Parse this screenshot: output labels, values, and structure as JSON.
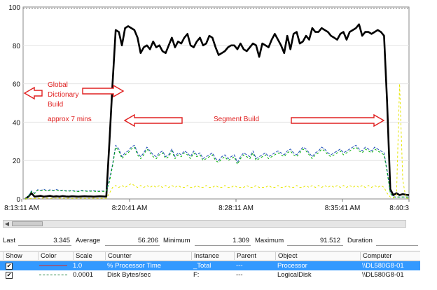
{
  "chart_data": {
    "type": "line",
    "y_ticks": [
      "0",
      "20",
      "40",
      "60",
      "80",
      "100"
    ],
    "ylim": [
      0,
      100
    ],
    "x_ticks": [
      "8:13:11 AM",
      "8:20:41 AM",
      "8:28:11 AM",
      "8:35:41 AM",
      "8:40:3"
    ],
    "series": [
      {
        "color": "#000000",
        "values": [
          0,
          1.2,
          3.0,
          1.2,
          1.4,
          1.6,
          1.2,
          1.4,
          1.6,
          1.2,
          1.4,
          1.2,
          1.5,
          1.3,
          1.2,
          1.4,
          1.3,
          1.2,
          1.3,
          1.4,
          1.3,
          1.3,
          1.2,
          1.3,
          1.4,
          1.3,
          1.2,
          30,
          60,
          88,
          87,
          80,
          89,
          90,
          89,
          88,
          84,
          76,
          79,
          80,
          78,
          82,
          79,
          80,
          77,
          76,
          80,
          84,
          79,
          82,
          81,
          84,
          86,
          80,
          79,
          82,
          84,
          80,
          81,
          85,
          84,
          79,
          75,
          76,
          77,
          79,
          80,
          80,
          78,
          81,
          78,
          77,
          79,
          81,
          80,
          74,
          81,
          80,
          79,
          83,
          86,
          83,
          80,
          76,
          85,
          78,
          86,
          87,
          81,
          82,
          85,
          83,
          89,
          87,
          87,
          89,
          88,
          87,
          85,
          84,
          83,
          86,
          87,
          83,
          87,
          88,
          89,
          91,
          85,
          87,
          87,
          86,
          87,
          88,
          87,
          85,
          50,
          5,
          2,
          3,
          2,
          2.5,
          2.2,
          2.0
        ]
      },
      {
        "color": "#1f4fb8",
        "values": [
          0,
          1.5,
          4.2,
          3.0,
          4.8,
          4.5,
          5.0,
          4.3,
          4.8,
          4.5,
          4.9,
          4.4,
          4.6,
          4.3,
          4.2,
          4.5,
          4.1,
          4.0,
          4.4,
          4.3,
          4.1,
          4.2,
          4.3,
          4.0,
          4.1,
          4.1,
          4.1,
          10,
          18,
          28,
          26,
          22,
          24,
          25,
          27,
          28,
          24,
          22,
          24,
          27,
          25,
          23,
          22,
          24,
          25,
          22,
          23,
          26,
          22,
          24,
          23,
          25,
          24,
          22,
          25,
          23,
          24,
          21,
          22,
          23,
          24,
          21,
          20,
          22,
          23,
          21,
          22,
          23,
          19,
          22,
          24,
          23,
          22,
          25,
          21,
          22,
          23,
          24,
          22,
          23,
          24,
          25,
          24,
          23,
          25,
          26,
          24,
          23,
          25,
          27,
          26,
          24,
          22,
          24,
          25,
          27,
          26,
          24,
          23,
          24,
          25,
          26,
          24,
          25,
          26,
          27,
          28,
          26,
          25,
          27,
          26,
          25,
          27,
          26,
          25,
          24,
          15,
          3,
          1,
          1,
          1,
          1,
          1,
          1
        ]
      },
      {
        "color": "#00b000",
        "values": [
          0,
          1.2,
          3.8,
          2.8,
          4.6,
          4.3,
          4.8,
          4.1,
          4.6,
          4.3,
          4.7,
          4.2,
          4.4,
          4.1,
          4.0,
          4.3,
          3.9,
          3.8,
          4.2,
          4.1,
          3.9,
          4.0,
          4.1,
          3.8,
          3.9,
          3.9,
          3.9,
          9,
          17,
          27,
          25,
          21,
          23,
          24,
          26,
          27,
          23,
          21,
          23,
          26,
          24,
          22,
          21,
          23,
          24,
          21,
          22,
          25,
          21,
          23,
          22,
          24,
          23,
          21,
          24,
          22,
          23,
          20,
          21,
          22,
          23,
          20,
          19,
          21,
          22,
          20,
          21,
          22,
          18,
          21,
          23,
          22,
          21,
          24,
          20,
          21,
          22,
          23,
          21,
          22,
          23,
          24,
          23,
          22,
          24,
          25,
          23,
          22,
          24,
          26,
          25,
          23,
          21,
          23,
          24,
          26,
          25,
          23,
          22,
          23,
          24,
          25,
          23,
          24,
          25,
          26,
          27,
          25,
          24,
          26,
          25,
          24,
          26,
          25,
          24,
          23,
          14,
          3,
          1,
          1,
          1,
          1,
          1,
          1
        ]
      },
      {
        "color": "#e6e600",
        "values": [
          0,
          0.2,
          0.3,
          0.2,
          0.4,
          0.3,
          0.5,
          0.4,
          0.3,
          0.4,
          0.5,
          0.3,
          0.4,
          0.3,
          0.4,
          0.3,
          0.4,
          0.3,
          0.4,
          0.3,
          0.4,
          0.3,
          0.4,
          0.3,
          0.4,
          0.3,
          0.3,
          3,
          6,
          7,
          6,
          7,
          6,
          7,
          8,
          7,
          6,
          7,
          6,
          7,
          6,
          7,
          6,
          7,
          6,
          7,
          6,
          7,
          6,
          7,
          6,
          6,
          7,
          6,
          6,
          7,
          6,
          6,
          7,
          6,
          6,
          7,
          6,
          6,
          7,
          6,
          6,
          7,
          6,
          6,
          6,
          7,
          6,
          6,
          7,
          6,
          6,
          6,
          7,
          6,
          6,
          7,
          6,
          6,
          7,
          6,
          6,
          7,
          6,
          6,
          7,
          6,
          7,
          6,
          7,
          6,
          7,
          6,
          7,
          6,
          7,
          6,
          7,
          6,
          7,
          6,
          7,
          6,
          7,
          6,
          7,
          6,
          7,
          6,
          7,
          6,
          3,
          1,
          0.5,
          2,
          60,
          10,
          0.5,
          0.3
        ]
      }
    ],
    "annotations": [
      "Global",
      "Dictionary",
      "Build",
      "approx 7 mins",
      "Segment  Build"
    ],
    "annotation_color": "#e02020"
  },
  "stats": {
    "last_label": "Last",
    "last_value": "3.345",
    "average_label": "Average",
    "average_value": "56.206",
    "minimum_label": "Minimum",
    "minimum_value": "1.309",
    "maximum_label": "Maximum",
    "maximum_value": "91.512",
    "duration_label": "Duration"
  },
  "counters": {
    "columns": [
      "Show",
      "Color",
      "Scale",
      "Counter",
      "Instance",
      "Parent",
      "Object",
      "Computer"
    ],
    "rows": [
      {
        "show": "✔",
        "color": "#d03030",
        "scale": "1.0",
        "counter": "% Processor Time",
        "instance": "_Total",
        "parent": "---",
        "object": "Processor",
        "computer": "\\\\DL580G8-01"
      },
      {
        "show": "✔",
        "color": "#1f7f3f",
        "scale": "0.0001",
        "counter": "Disk Bytes/sec",
        "instance": "F:",
        "parent": "---",
        "object": "LogicalDisk",
        "computer": "\\\\DL580G8-01"
      }
    ]
  }
}
